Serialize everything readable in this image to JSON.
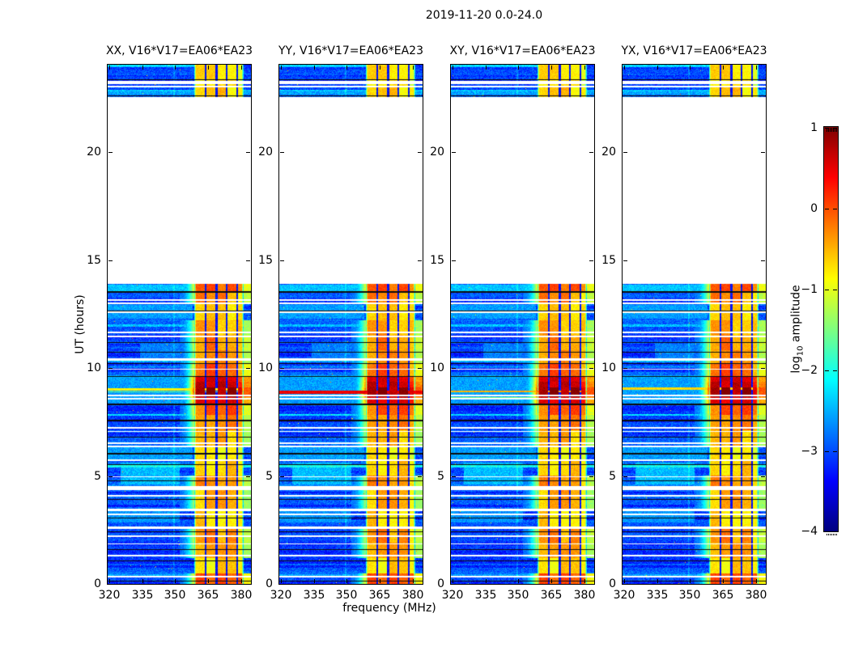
{
  "chart_data": {
    "type": "heatmap",
    "title": "2019-11-20 0.0-24.0",
    "xlabel": "frequency (MHz)",
    "ylabel": "UT (hours)",
    "colorbar_label_parts": [
      "log",
      "10",
      " amplitude"
    ],
    "colormap": "jet",
    "clim": [
      -4,
      1
    ],
    "colorbar_ticks": [
      1,
      0,
      -1,
      -2,
      -3,
      -4
    ],
    "xlim": [
      319.2,
      384.5
    ],
    "ylim": [
      0,
      24
    ],
    "xticks": [
      320,
      335,
      350,
      365,
      380
    ],
    "yticks": [
      0,
      5,
      10,
      15,
      20
    ],
    "panels": [
      {
        "id": "XX",
        "title": "XX, V16*V17=EA06*EA23"
      },
      {
        "id": "YY",
        "title": "YY, V16*V17=EA06*EA23"
      },
      {
        "id": "XY",
        "title": "XY, V16*V17=EA06*EA23"
      },
      {
        "id": "YX",
        "title": "YX, V16*V17=EA06*EA23"
      }
    ],
    "features": {
      "time_coverage_hours": [
        [
          0.0,
          13.85
        ],
        [
          22.52,
          24.0
        ]
      ],
      "no_data_interval_hours": [
        13.87,
        22.52
      ],
      "background_log10_amp": -3.05,
      "rfi_band_mhz": [
        358.5,
        381.3
      ],
      "rfi_column_gaps_mhz": [
        363.9,
        368.8,
        373.5,
        378.3
      ],
      "rfi_time_blocks": [
        [
          0.0,
          0.5,
          0.0
        ],
        [
          0.5,
          1.2,
          -0.75
        ],
        [
          1.2,
          1.9,
          -0.5
        ],
        [
          1.9,
          2.6,
          -0.35
        ],
        [
          2.6,
          3.4,
          -0.65
        ],
        [
          3.4,
          4.4,
          -0.55
        ],
        [
          4.4,
          5.0,
          -0.4
        ],
        [
          5.0,
          5.7,
          -0.6
        ],
        [
          5.7,
          6.4,
          -0.75
        ],
        [
          6.4,
          7.1,
          -0.5
        ],
        [
          7.1,
          7.8,
          -0.4
        ],
        [
          7.8,
          8.3,
          -0.15
        ],
        [
          8.3,
          8.65,
          0.45
        ],
        [
          8.65,
          9.1,
          0.9
        ],
        [
          9.1,
          9.35,
          0.65
        ],
        [
          9.35,
          9.6,
          0.5
        ],
        [
          9.6,
          10.2,
          -0.1
        ],
        [
          10.2,
          10.8,
          -0.45
        ],
        [
          10.8,
          11.5,
          -0.3
        ],
        [
          11.5,
          12.2,
          -0.5
        ],
        [
          12.2,
          13.0,
          -0.6
        ],
        [
          13.0,
          13.55,
          -0.35
        ],
        [
          13.55,
          13.87,
          -0.1
        ],
        [
          22.52,
          23.0,
          -0.7
        ],
        [
          23.0,
          23.3,
          -0.9
        ],
        [
          23.3,
          24.0,
          -0.7
        ]
      ],
      "hot_interval_hours": [
        8.3,
        9.6
      ],
      "white_dropout_rows_hours": [
        [
          23.18,
          0.13
        ],
        [
          22.99,
          0.07
        ],
        [
          13.12,
          0.08
        ],
        [
          12.97,
          0.07
        ],
        [
          12.55,
          0.06
        ],
        [
          11.62,
          0.09
        ],
        [
          11.45,
          0.07
        ],
        [
          10.37,
          0.11
        ],
        [
          9.93,
          0.06
        ],
        [
          8.72,
          0.09
        ],
        [
          8.55,
          0.06
        ],
        [
          7.2,
          0.07
        ],
        [
          7.05,
          0.06
        ],
        [
          6.5,
          0.07
        ],
        [
          6.35,
          0.06
        ],
        [
          5.72,
          0.06
        ],
        [
          4.95,
          0.06
        ],
        [
          4.42,
          0.18
        ],
        [
          4.08,
          0.06
        ],
        [
          3.42,
          0.09
        ],
        [
          3.22,
          0.09
        ],
        [
          2.6,
          0.09
        ],
        [
          2.2,
          0.06
        ],
        [
          1.85,
          0.07
        ],
        [
          1.3,
          0.06
        ],
        [
          0.33,
          0.09
        ]
      ],
      "black_flagged_rows_hours": [
        [
          23.3,
          0.05
        ],
        [
          22.56,
          0.05
        ],
        [
          13.5,
          0.05
        ],
        [
          12.62,
          0.04
        ],
        [
          11.15,
          0.05
        ],
        [
          10.7,
          0.04
        ],
        [
          10.18,
          0.04
        ],
        [
          9.58,
          0.04
        ],
        [
          8.3,
          0.04
        ],
        [
          7.55,
          0.05
        ],
        [
          6.8,
          0.04
        ],
        [
          6.02,
          0.05
        ],
        [
          5.5,
          0.04
        ],
        [
          4.75,
          0.04
        ],
        [
          3.9,
          0.04
        ],
        [
          3.05,
          0.05
        ],
        [
          2.4,
          0.04
        ],
        [
          1.6,
          0.04
        ],
        [
          1.05,
          0.04
        ],
        [
          0.12,
          0.05
        ]
      ],
      "cyan_patches": [
        [
          4.6,
          5.6,
          325,
          352,
          -2.45
        ],
        [
          5.7,
          6.35,
          319.2,
          358,
          -2.6
        ],
        [
          12.25,
          12.9,
          319.2,
          358,
          -2.6
        ],
        [
          13.55,
          13.85,
          319.2,
          358,
          -2.4
        ],
        [
          2.85,
          3.35,
          319.2,
          352,
          -2.65
        ],
        [
          10.3,
          11.1,
          334,
          352,
          -2.75
        ],
        [
          23.9,
          24.0,
          319.2,
          360,
          -2.35
        ]
      ],
      "horizontal_streaks_per_panel": {
        "XX": [
          [
            9.0,
            0.1,
            -0.85
          ],
          [
            8.88,
            0.07,
            -1.6
          ]
        ],
        "YY": [
          [
            8.85,
            0.15,
            0.45
          ]
        ],
        "XY": [
          [
            8.9,
            0.1,
            -0.5
          ],
          [
            8.6,
            0.07,
            -1.5
          ]
        ],
        "YX": [
          [
            9.03,
            0.09,
            -0.7
          ]
        ]
      },
      "faint_vertical_line_mhz": 349.3
    }
  }
}
